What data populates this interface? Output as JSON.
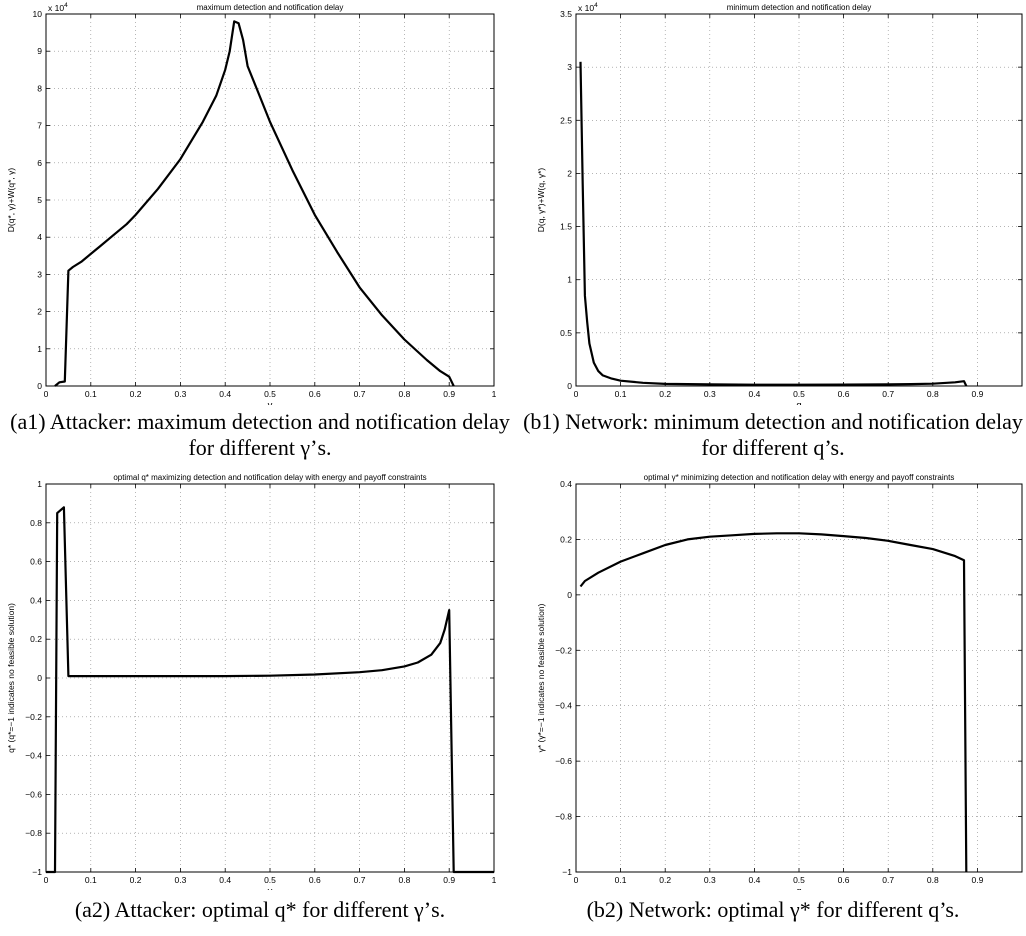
{
  "chart_data": [
    {
      "type": "line",
      "title": "maximum detection and notification delay",
      "xlabel": "γ",
      "ylabel": "D(q*, γ)+W(q*, γ)",
      "y_exponent": "x 10",
      "y_exponent_power": "4",
      "xlim": [
        0,
        1
      ],
      "ylim": [
        0,
        10
      ],
      "x_ticks": [
        0,
        0.1,
        0.2,
        0.3,
        0.4,
        0.5,
        0.6,
        0.7,
        0.8,
        0.9,
        1
      ],
      "x_tick_labels": [
        "0",
        "0.1",
        "0.2",
        "0.3",
        "0.4",
        "0.5",
        "0.6",
        "0.7",
        "0.8",
        "0.9",
        "1"
      ],
      "y_ticks": [
        0,
        1,
        2,
        3,
        4,
        5,
        6,
        7,
        8,
        9,
        10
      ],
      "y_tick_labels": [
        "0",
        "1",
        "2",
        "3",
        "4",
        "5",
        "6",
        "7",
        "8",
        "9",
        "10"
      ],
      "grid": true,
      "series": [
        {
          "x": [
            0.02,
            0.03,
            0.042,
            0.05,
            0.06,
            0.08,
            0.1,
            0.12,
            0.15,
            0.18,
            0.2,
            0.25,
            0.3,
            0.35,
            0.38,
            0.4,
            0.41,
            0.42,
            0.43,
            0.44,
            0.45,
            0.47,
            0.5,
            0.55,
            0.6,
            0.65,
            0.7,
            0.75,
            0.8,
            0.85,
            0.88,
            0.9,
            0.91
          ],
          "y": [
            0,
            0.1,
            0.12,
            3.1,
            3.2,
            3.35,
            3.55,
            3.75,
            4.05,
            4.35,
            4.6,
            5.3,
            6.1,
            7.1,
            7.8,
            8.5,
            9.0,
            9.8,
            9.75,
            9.3,
            8.6,
            8.0,
            7.1,
            5.8,
            4.6,
            3.6,
            2.65,
            1.9,
            1.25,
            0.7,
            0.4,
            0.25,
            0.0
          ]
        }
      ]
    },
    {
      "type": "line",
      "title": "minimum detection and notification delay",
      "xlabel": "q",
      "ylabel": "D(q, γ*)+W(q, γ*)",
      "y_exponent": "x 10",
      "y_exponent_power": "4",
      "xlim": [
        0,
        1
      ],
      "ylim": [
        0,
        3.5
      ],
      "x_ticks": [
        0,
        0.1,
        0.2,
        0.3,
        0.4,
        0.5,
        0.6,
        0.7,
        0.8,
        0.9
      ],
      "x_tick_labels": [
        "0",
        "0.1",
        "0.2",
        "0.3",
        "0.4",
        "0.5",
        "0.6",
        "0.7",
        "0.8",
        "0.9"
      ],
      "y_ticks": [
        0,
        0.5,
        1,
        1.5,
        2,
        2.5,
        3,
        3.5
      ],
      "y_tick_labels": [
        "0",
        "0.5",
        "1",
        "1.5",
        "2",
        "2.5",
        "3",
        "3.5"
      ],
      "grid": true,
      "series": [
        {
          "x": [
            0.01,
            0.015,
            0.02,
            0.025,
            0.03,
            0.04,
            0.05,
            0.06,
            0.08,
            0.1,
            0.15,
            0.2,
            0.3,
            0.4,
            0.5,
            0.6,
            0.7,
            0.75,
            0.8,
            0.85,
            0.87,
            0.875
          ],
          "y": [
            3.05,
            1.9,
            0.85,
            0.6,
            0.4,
            0.22,
            0.14,
            0.1,
            0.07,
            0.05,
            0.03,
            0.02,
            0.015,
            0.012,
            0.012,
            0.013,
            0.015,
            0.018,
            0.022,
            0.035,
            0.045,
            0.0
          ]
        }
      ]
    },
    {
      "type": "line",
      "title": "optimal q* maximizing detection and notification delay with energy and payoff constraints",
      "xlabel": "γ",
      "ylabel": "q* (q*=−1 indicates no feasible solution)",
      "xlim": [
        0,
        1
      ],
      "ylim": [
        -1,
        1
      ],
      "x_ticks": [
        0,
        0.1,
        0.2,
        0.3,
        0.4,
        0.5,
        0.6,
        0.7,
        0.8,
        0.9,
        1
      ],
      "x_tick_labels": [
        "0",
        "0.1",
        "0.2",
        "0.3",
        "0.4",
        "0.5",
        "0.6",
        "0.7",
        "0.8",
        "0.9",
        "1"
      ],
      "y_ticks": [
        -1,
        -0.8,
        -0.6,
        -0.4,
        -0.2,
        0,
        0.2,
        0.4,
        0.6,
        0.8,
        1
      ],
      "y_tick_labels": [
        "−1",
        "−0.8",
        "−0.6",
        "−0.4",
        "−0.2",
        "0",
        "0.2",
        "0.4",
        "0.6",
        "0.8",
        "1"
      ],
      "grid": true,
      "series": [
        {
          "x": [
            0.0,
            0.02,
            0.025,
            0.03,
            0.04,
            0.05,
            0.1,
            0.2,
            0.3,
            0.4,
            0.5,
            0.6,
            0.7,
            0.75,
            0.8,
            0.83,
            0.86,
            0.88,
            0.89,
            0.9,
            0.91,
            0.95,
            1.0
          ],
          "y": [
            -1,
            -1,
            0.85,
            0.86,
            0.88,
            0.01,
            0.01,
            0.01,
            0.01,
            0.01,
            0.012,
            0.018,
            0.03,
            0.04,
            0.06,
            0.08,
            0.12,
            0.18,
            0.25,
            0.35,
            -1,
            -1,
            -1
          ]
        }
      ]
    },
    {
      "type": "line",
      "title": "optimal γ* minimizing detection and notification delay with energy and payoff constraints",
      "xlabel": "q",
      "ylabel": "γ* (γ*=−1 indicates no feasible solution)",
      "xlim": [
        0,
        1
      ],
      "ylim": [
        -1,
        0.4
      ],
      "x_ticks": [
        0,
        0.1,
        0.2,
        0.3,
        0.4,
        0.5,
        0.6,
        0.7,
        0.8,
        0.9
      ],
      "x_tick_labels": [
        "0",
        "0.1",
        "0.2",
        "0.3",
        "0.4",
        "0.5",
        "0.6",
        "0.7",
        "0.8",
        "0.9"
      ],
      "y_ticks": [
        -1,
        -0.8,
        -0.6,
        -0.4,
        -0.2,
        0,
        0.2,
        0.4
      ],
      "y_tick_labels": [
        "−1",
        "−0.8",
        "−0.6",
        "−0.4",
        "−0.2",
        "0",
        "0.2",
        "0.4"
      ],
      "grid": true,
      "series": [
        {
          "x": [
            0.01,
            0.02,
            0.05,
            0.1,
            0.15,
            0.2,
            0.25,
            0.3,
            0.35,
            0.4,
            0.45,
            0.5,
            0.55,
            0.6,
            0.65,
            0.7,
            0.75,
            0.8,
            0.85,
            0.87,
            0.875
          ],
          "y": [
            0.03,
            0.05,
            0.08,
            0.12,
            0.15,
            0.18,
            0.2,
            0.21,
            0.215,
            0.22,
            0.222,
            0.222,
            0.218,
            0.212,
            0.205,
            0.195,
            0.18,
            0.165,
            0.14,
            0.125,
            -1.0
          ]
        }
      ]
    }
  ],
  "captions": [
    "(a1) Attacker: maximum detection and notification delay for different γ’s.",
    "(b1) Network: minimum detection and notification delay for different q’s.",
    "(a2) Attacker: optimal q* for different γ’s.",
    "(b2) Network: optimal γ* for different q’s."
  ]
}
